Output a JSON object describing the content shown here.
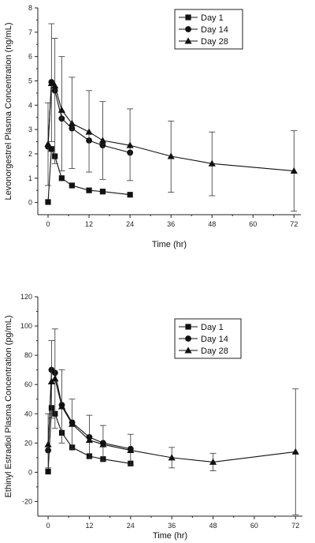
{
  "chart_data": [
    {
      "type": "line",
      "xlabel": "Time (hr)",
      "ylabel": "Levonorgestrel Plasma Concentration (ng/mL)",
      "xlim": [
        -3,
        74
      ],
      "ylim": [
        -0.5,
        8
      ],
      "xticks": [
        0,
        12,
        24,
        36,
        48,
        60,
        72
      ],
      "yticks": [
        0,
        1,
        2,
        3,
        4,
        5,
        6,
        7,
        8
      ],
      "grid": false,
      "legend": "top-center",
      "series": [
        {
          "name": "Day 1",
          "marker": "square",
          "x": [
            0,
            1,
            2,
            4,
            7,
            12,
            16,
            24
          ],
          "y": [
            0.02,
            2.2,
            1.9,
            1.0,
            0.7,
            0.5,
            0.45,
            0.32
          ]
        },
        {
          "name": "Day 14",
          "marker": "circle",
          "x": [
            0,
            1,
            2,
            4,
            7,
            12,
            16,
            24
          ],
          "y": [
            2.3,
            4.95,
            4.6,
            3.45,
            3.05,
            2.55,
            2.35,
            2.05
          ]
        },
        {
          "name": "Day 28",
          "marker": "triangle",
          "x": [
            0,
            1,
            2,
            4,
            7,
            12,
            16,
            24,
            36,
            48,
            72
          ],
          "y": [
            2.4,
            4.9,
            4.8,
            3.8,
            3.25,
            2.9,
            2.55,
            2.35,
            1.9,
            1.6,
            1.3
          ],
          "err_low": [
            0.7,
            2.5,
            1.6,
            1.3,
            1.4,
            1.25,
            0.95,
            0.9,
            0.42,
            0.28,
            -0.35
          ],
          "err_high": [
            4.1,
            7.35,
            6.75,
            6.0,
            5.15,
            4.6,
            4.15,
            3.85,
            3.35,
            2.9,
            2.95
          ]
        }
      ]
    },
    {
      "type": "line",
      "xlabel": "Time (hr)",
      "ylabel": "Ethinyl Estradiol Plasma Concentration (pg/mL)",
      "xlim": [
        -3,
        74
      ],
      "ylim": [
        -30,
        120
      ],
      "xticks": [
        0,
        12,
        24,
        36,
        48,
        60,
        72
      ],
      "yticks": [
        -20,
        0,
        20,
        40,
        60,
        80,
        100,
        120
      ],
      "grid": false,
      "legend": "top-right",
      "series": [
        {
          "name": "Day 1",
          "marker": "square",
          "x": [
            0,
            1,
            2,
            4,
            7,
            12,
            16,
            24
          ],
          "y": [
            0.5,
            44,
            40,
            27,
            17,
            11,
            9,
            6
          ]
        },
        {
          "name": "Day 14",
          "marker": "circle",
          "x": [
            0,
            1,
            2,
            4,
            7,
            12,
            16,
            24
          ],
          "y": [
            15,
            70,
            68,
            46,
            34,
            24,
            20,
            16
          ]
        },
        {
          "name": "Day 28",
          "marker": "triangle",
          "x": [
            0,
            1,
            2,
            4,
            7,
            12,
            16,
            24,
            36,
            48,
            72
          ],
          "y": [
            19,
            62,
            64,
            45,
            33,
            22,
            19,
            15,
            10,
            7,
            14
          ],
          "err_low": [
            3,
            37,
            30,
            20,
            16,
            10,
            8,
            5,
            3,
            1,
            -29
          ],
          "err_high": [
            40,
            90,
            98,
            70,
            50,
            39,
            32,
            26,
            17,
            13,
            57
          ]
        }
      ]
    }
  ]
}
